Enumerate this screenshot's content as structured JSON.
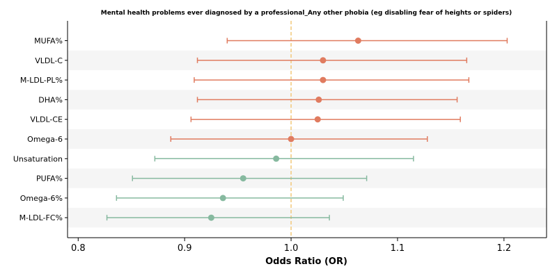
{
  "chart_data": {
    "type": "forest",
    "title": "Mental health problems ever diagnosed by a professional_Any other phobia (eg disabling fear of heights or spiders)",
    "xlabel": "Odds Ratio (OR)",
    "ylabel": "",
    "xlim": [
      0.79,
      1.24
    ],
    "xticks": [
      0.8,
      0.9,
      1.0,
      1.1,
      1.2
    ],
    "xtick_labels": [
      "0.8",
      "0.9",
      "1.0",
      "1.1",
      "1.2"
    ],
    "reference_line": 1.0,
    "colors": {
      "above": "#e07b5f",
      "below": "#86b99f",
      "reference": "#f2c879",
      "band": "#f5f5f5"
    },
    "rows": [
      {
        "label": "MUFA%",
        "or": 1.063,
        "lo": 0.94,
        "hi": 1.203
      },
      {
        "label": "VLDL-C",
        "or": 1.03,
        "lo": 0.912,
        "hi": 1.165
      },
      {
        "label": "M-LDL-PL%",
        "or": 1.03,
        "lo": 0.909,
        "hi": 1.167
      },
      {
        "label": "DHA%",
        "or": 1.026,
        "lo": 0.912,
        "hi": 1.156
      },
      {
        "label": "VLDL-CE",
        "or": 1.025,
        "lo": 0.906,
        "hi": 1.159
      },
      {
        "label": "Omega-6",
        "or": 1.0,
        "lo": 0.887,
        "hi": 1.128
      },
      {
        "label": "Unsaturation",
        "or": 0.986,
        "lo": 0.872,
        "hi": 1.115
      },
      {
        "label": "PUFA%",
        "or": 0.955,
        "lo": 0.851,
        "hi": 1.071
      },
      {
        "label": "Omega-6%",
        "or": 0.936,
        "lo": 0.836,
        "hi": 1.049
      },
      {
        "label": "M-LDL-FC%",
        "or": 0.925,
        "lo": 0.827,
        "hi": 1.036
      }
    ]
  }
}
